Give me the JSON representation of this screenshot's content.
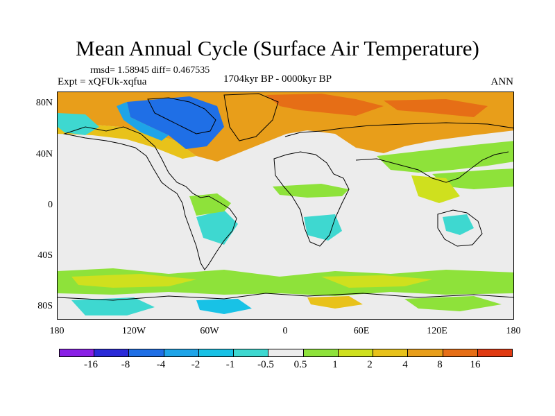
{
  "title": "Mean Annual Cycle (Surface Air Temperature)",
  "stats": "rmsd= 1.58945 diff= 0.467535",
  "expt": "Expt = xQFUk-xqfua",
  "period": "1704kyr BP - 0000kyr BP",
  "season": "ANN",
  "lat_ticks": [
    "80N",
    "40N",
    "0",
    "40S",
    "80S"
  ],
  "lon_ticks": [
    "180",
    "120W",
    "60W",
    "0",
    "60E",
    "120E",
    "180"
  ],
  "colorbar": {
    "colors": [
      "#8a1fe6",
      "#2a2ad8",
      "#1f6fe6",
      "#1ea4e8",
      "#18c2e6",
      "#3ed8d0",
      "#ececec",
      "#8ee23a",
      "#cfe01e",
      "#e8c21a",
      "#e89e1a",
      "#e66e16",
      "#e13a12"
    ],
    "labels": [
      "-16",
      "-8",
      "-4",
      "-2",
      "-1",
      "-0.5",
      "0.5",
      "1",
      "2",
      "4",
      "8",
      "16"
    ]
  }
}
